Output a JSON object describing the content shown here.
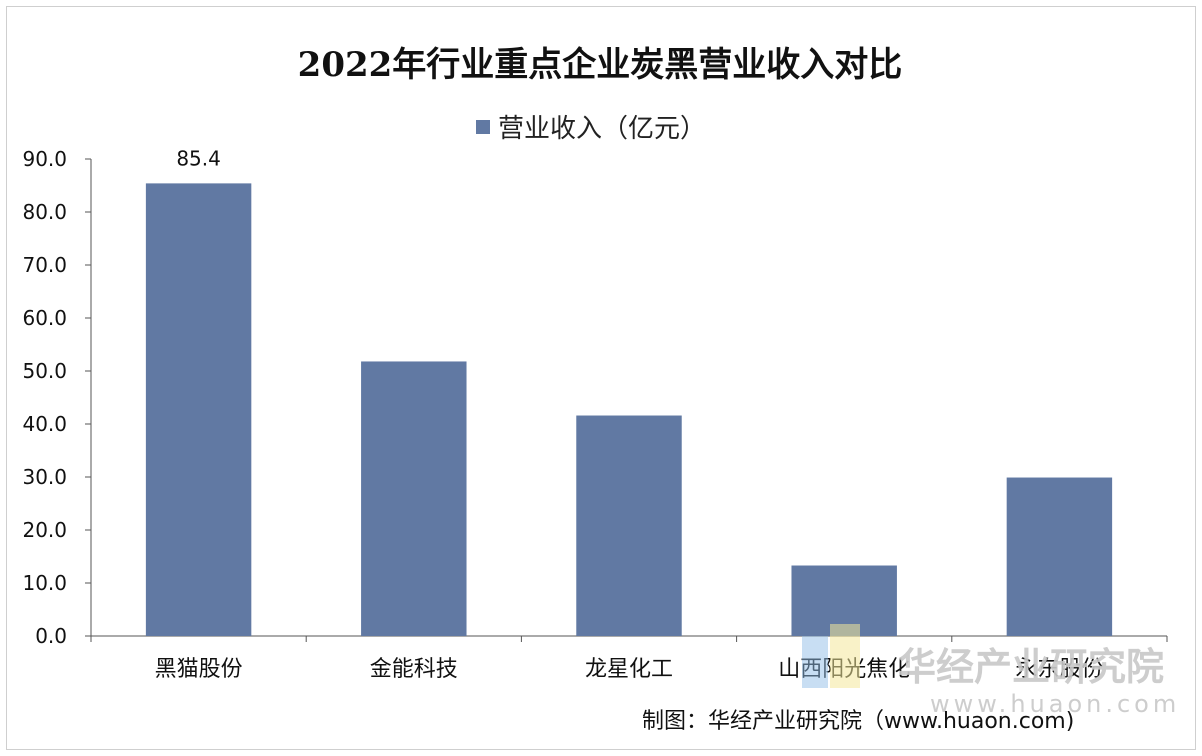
{
  "chart_data": {
    "type": "bar",
    "title": "2022年行业重点企业炭黑营业收入对比",
    "categories": [
      "黑猫股份",
      "金能科技",
      "龙星化工",
      "山西阳光焦化",
      "永东股份"
    ],
    "series": [
      {
        "name": "营业收入（亿元）",
        "values": [
          85.4,
          51.8,
          41.6,
          13.3,
          29.9
        ],
        "color": "#6179a3"
      }
    ],
    "data_labels": [
      {
        "index": 0,
        "text": "85.4"
      }
    ],
    "ylim": [
      0,
      90
    ],
    "yticks": [
      "0.0",
      "10.0",
      "20.0",
      "30.0",
      "40.0",
      "50.0",
      "60.0",
      "70.0",
      "80.0",
      "90.0"
    ],
    "legend_position": "top",
    "grid": false
  },
  "source_text": "制图：华经产业研究院（www.huaon.com)",
  "watermark": {
    "text": "华经产业研究院",
    "url": "www.huaon.com"
  }
}
